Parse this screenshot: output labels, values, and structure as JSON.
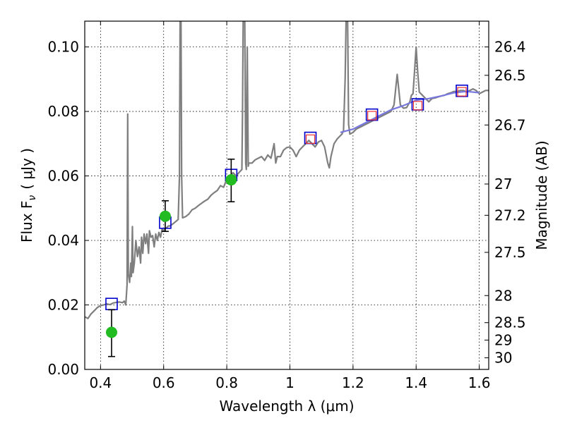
{
  "chart_data": {
    "type": "line",
    "title": "",
    "xlabel": "Wavelength  λ (μm)",
    "ylabel": "Flux  F",
    "ylabel_sub": "ν",
    "ylabel_unit": "( μJy )",
    "y2label": "Magnitude (AB)",
    "xlim": [
      0.35,
      1.63
    ],
    "ylim": [
      0.0,
      0.108
    ],
    "grid": true,
    "x_ticks": [
      0.4,
      0.6,
      0.8,
      1.0,
      1.2,
      1.4,
      1.6
    ],
    "x_tick_labels": [
      "0.4",
      "0.6",
      "0.8",
      "1",
      "1.2",
      "1.4",
      "1.6"
    ],
    "y_ticks": [
      0.0,
      0.02,
      0.04,
      0.06,
      0.08,
      0.1
    ],
    "y_tick_labels": [
      "0.00",
      "0.02",
      "0.04",
      "0.06",
      "0.08",
      "0.10"
    ],
    "y2_ticks": [
      {
        "label": "26.4",
        "flux": 0.1
      },
      {
        "label": "26.5",
        "flux": 0.0912
      },
      {
        "label": "26.7",
        "flux": 0.0758
      },
      {
        "label": "27",
        "flux": 0.0575
      },
      {
        "label": "27.2",
        "flux": 0.0478
      },
      {
        "label": "27.5",
        "flux": 0.0363
      },
      {
        "label": "28",
        "flux": 0.0229
      },
      {
        "label": "28.5",
        "flux": 0.0145
      },
      {
        "label": "29",
        "flux": 0.0091
      },
      {
        "label": "30",
        "flux": 0.0036
      }
    ],
    "series": [
      {
        "name": "model spectrum",
        "style": "line",
        "color": "#7f7f7f",
        "points": [
          [
            0.35,
            0.0163
          ],
          [
            0.36,
            0.0158
          ],
          [
            0.37,
            0.0172
          ],
          [
            0.38,
            0.0182
          ],
          [
            0.39,
            0.0192
          ],
          [
            0.4,
            0.0198
          ],
          [
            0.41,
            0.02
          ],
          [
            0.42,
            0.0203
          ],
          [
            0.43,
            0.0201
          ],
          [
            0.44,
            0.0206
          ],
          [
            0.45,
            0.0208
          ],
          [
            0.46,
            0.0209
          ],
          [
            0.47,
            0.0207
          ],
          [
            0.475,
            0.0212
          ],
          [
            0.48,
            0.02
          ],
          [
            0.484,
            0.0262
          ],
          [
            0.486,
            0.0792
          ],
          [
            0.488,
            0.0296
          ],
          [
            0.492,
            0.027
          ],
          [
            0.496,
            0.033
          ],
          [
            0.498,
            0.0288
          ],
          [
            0.501,
            0.0443
          ],
          [
            0.503,
            0.03
          ],
          [
            0.507,
            0.033
          ],
          [
            0.512,
            0.04
          ],
          [
            0.517,
            0.035
          ],
          [
            0.522,
            0.038
          ],
          [
            0.527,
            0.033
          ],
          [
            0.53,
            0.041
          ],
          [
            0.534,
            0.036
          ],
          [
            0.538,
            0.042
          ],
          [
            0.543,
            0.039
          ],
          [
            0.547,
            0.042
          ],
          [
            0.552,
            0.036
          ],
          [
            0.555,
            0.043
          ],
          [
            0.56,
            0.041
          ],
          [
            0.565,
            0.0415
          ],
          [
            0.57,
            0.038
          ],
          [
            0.575,
            0.042
          ],
          [
            0.58,
            0.04
          ],
          [
            0.585,
            0.0425
          ],
          [
            0.59,
            0.041
          ],
          [
            0.595,
            0.0435
          ],
          [
            0.6,
            0.043
          ],
          [
            0.605,
            0.0437
          ],
          [
            0.61,
            0.044
          ],
          [
            0.615,
            0.0445
          ],
          [
            0.62,
            0.0445
          ],
          [
            0.63,
            0.0452
          ],
          [
            0.64,
            0.046
          ],
          [
            0.646,
            0.0465
          ],
          [
            0.65,
            0.06
          ],
          [
            0.652,
            0.108
          ],
          [
            0.655,
            0.108
          ],
          [
            0.657,
            0.06
          ],
          [
            0.66,
            0.047
          ],
          [
            0.67,
            0.0474
          ],
          [
            0.68,
            0.0482
          ],
          [
            0.69,
            0.0495
          ],
          [
            0.7,
            0.05
          ],
          [
            0.71,
            0.0508
          ],
          [
            0.72,
            0.0515
          ],
          [
            0.73,
            0.0522
          ],
          [
            0.74,
            0.0528
          ],
          [
            0.75,
            0.054
          ],
          [
            0.76,
            0.0548
          ],
          [
            0.77,
            0.0555
          ],
          [
            0.78,
            0.057
          ],
          [
            0.79,
            0.0565
          ],
          [
            0.8,
            0.059
          ],
          [
            0.81,
            0.06
          ],
          [
            0.82,
            0.061
          ],
          [
            0.83,
            0.06
          ],
          [
            0.84,
            0.0612
          ],
          [
            0.848,
            0.062
          ],
          [
            0.85,
            0.08
          ],
          [
            0.852,
            0.108
          ],
          [
            0.857,
            0.108
          ],
          [
            0.86,
            0.064
          ],
          [
            0.862,
            0.062
          ],
          [
            0.865,
            0.1
          ],
          [
            0.868,
            0.063
          ],
          [
            0.87,
            0.064
          ],
          [
            0.88,
            0.064
          ],
          [
            0.89,
            0.065
          ],
          [
            0.9,
            0.0655
          ],
          [
            0.91,
            0.066
          ],
          [
            0.92,
            0.0648
          ],
          [
            0.93,
            0.0665
          ],
          [
            0.94,
            0.0655
          ],
          [
            0.95,
            0.07
          ],
          [
            0.955,
            0.064
          ],
          [
            0.96,
            0.066
          ],
          [
            0.97,
            0.066
          ],
          [
            0.98,
            0.068
          ],
          [
            0.99,
            0.0688
          ],
          [
            1.0,
            0.069
          ],
          [
            1.01,
            0.068
          ],
          [
            1.02,
            0.066
          ],
          [
            1.03,
            0.068
          ],
          [
            1.04,
            0.069
          ],
          [
            1.05,
            0.07
          ],
          [
            1.06,
            0.071
          ],
          [
            1.07,
            0.07
          ],
          [
            1.08,
            0.069
          ],
          [
            1.09,
            0.0705
          ],
          [
            1.1,
            0.071
          ],
          [
            1.11,
            0.069
          ],
          [
            1.12,
            0.064
          ],
          [
            1.125,
            0.0625
          ],
          [
            1.13,
            0.066
          ],
          [
            1.14,
            0.07
          ],
          [
            1.15,
            0.0715
          ],
          [
            1.16,
            0.0725
          ],
          [
            1.165,
            0.073
          ],
          [
            1.17,
            0.074
          ],
          [
            1.175,
            0.09
          ],
          [
            1.178,
            0.108
          ],
          [
            1.183,
            0.108
          ],
          [
            1.186,
            0.076
          ],
          [
            1.19,
            0.073
          ],
          [
            1.2,
            0.0735
          ],
          [
            1.21,
            0.0745
          ],
          [
            1.22,
            0.075
          ],
          [
            1.23,
            0.0755
          ],
          [
            1.24,
            0.076
          ],
          [
            1.25,
            0.0765
          ],
          [
            1.26,
            0.077
          ],
          [
            1.27,
            0.0775
          ],
          [
            1.28,
            0.078
          ],
          [
            1.29,
            0.0785
          ],
          [
            1.3,
            0.079
          ],
          [
            1.31,
            0.0795
          ],
          [
            1.32,
            0.08
          ],
          [
            1.33,
            0.082
          ],
          [
            1.34,
            0.0915
          ],
          [
            1.35,
            0.082
          ],
          [
            1.36,
            0.081
          ],
          [
            1.37,
            0.0812
          ],
          [
            1.38,
            0.083
          ],
          [
            1.385,
            0.085
          ],
          [
            1.39,
            0.0855
          ],
          [
            1.395,
            0.0925
          ],
          [
            1.4,
            0.1
          ],
          [
            1.405,
            0.092
          ],
          [
            1.41,
            0.086
          ],
          [
            1.42,
            0.085
          ],
          [
            1.43,
            0.084
          ],
          [
            1.44,
            0.083
          ],
          [
            1.45,
            0.084
          ],
          [
            1.46,
            0.0842
          ],
          [
            1.47,
            0.0845
          ],
          [
            1.48,
            0.0848
          ],
          [
            1.49,
            0.085
          ],
          [
            1.5,
            0.0855
          ],
          [
            1.51,
            0.0858
          ],
          [
            1.52,
            0.0862
          ],
          [
            1.53,
            0.0862
          ],
          [
            1.54,
            0.0865
          ],
          [
            1.55,
            0.0865
          ],
          [
            1.56,
            0.086
          ],
          [
            1.57,
            0.0865
          ],
          [
            1.58,
            0.087
          ],
          [
            1.59,
            0.0865
          ],
          [
            1.6,
            0.0855
          ],
          [
            1.61,
            0.086
          ],
          [
            1.62,
            0.0865
          ],
          [
            1.63,
            0.0865
          ]
        ]
      },
      {
        "name": "model smooth continuum",
        "style": "line",
        "color": "#7777dd",
        "points": [
          [
            1.16,
            0.0735
          ],
          [
            1.2,
            0.0745
          ],
          [
            1.24,
            0.0765
          ],
          [
            1.28,
            0.0785
          ],
          [
            1.32,
            0.0805
          ],
          [
            1.36,
            0.0818
          ],
          [
            1.4,
            0.0835
          ],
          [
            1.44,
            0.084
          ],
          [
            1.48,
            0.0848
          ],
          [
            1.52,
            0.0858
          ],
          [
            1.56,
            0.0862
          ],
          [
            1.6,
            0.0858
          ]
        ]
      },
      {
        "name": "model photometry (blue squares)",
        "style": "square",
        "color": "#0000cc",
        "points": [
          [
            0.435,
            0.0203
          ],
          [
            0.605,
            0.0455
          ],
          [
            0.814,
            0.0603
          ],
          [
            1.065,
            0.0718
          ],
          [
            1.26,
            0.079
          ],
          [
            1.405,
            0.0822
          ],
          [
            1.545,
            0.0864
          ]
        ]
      },
      {
        "name": "observed photometry (red squares)",
        "style": "square",
        "color": "#ee3333",
        "points": [
          [
            1.065,
            0.0714
          ],
          [
            1.26,
            0.0787
          ],
          [
            1.405,
            0.0818
          ],
          [
            1.545,
            0.0861
          ]
        ]
      },
      {
        "name": "observed photometry (green points)",
        "style": "errorbar",
        "color": "#22bb22",
        "points": [
          {
            "x": 0.435,
            "y": 0.0115,
            "lo": 0.004,
            "hi": 0.0185
          },
          {
            "x": 0.605,
            "y": 0.0475,
            "lo": 0.0428,
            "hi": 0.0523
          },
          {
            "x": 0.814,
            "y": 0.0588,
            "lo": 0.052,
            "hi": 0.0652
          }
        ]
      }
    ]
  }
}
